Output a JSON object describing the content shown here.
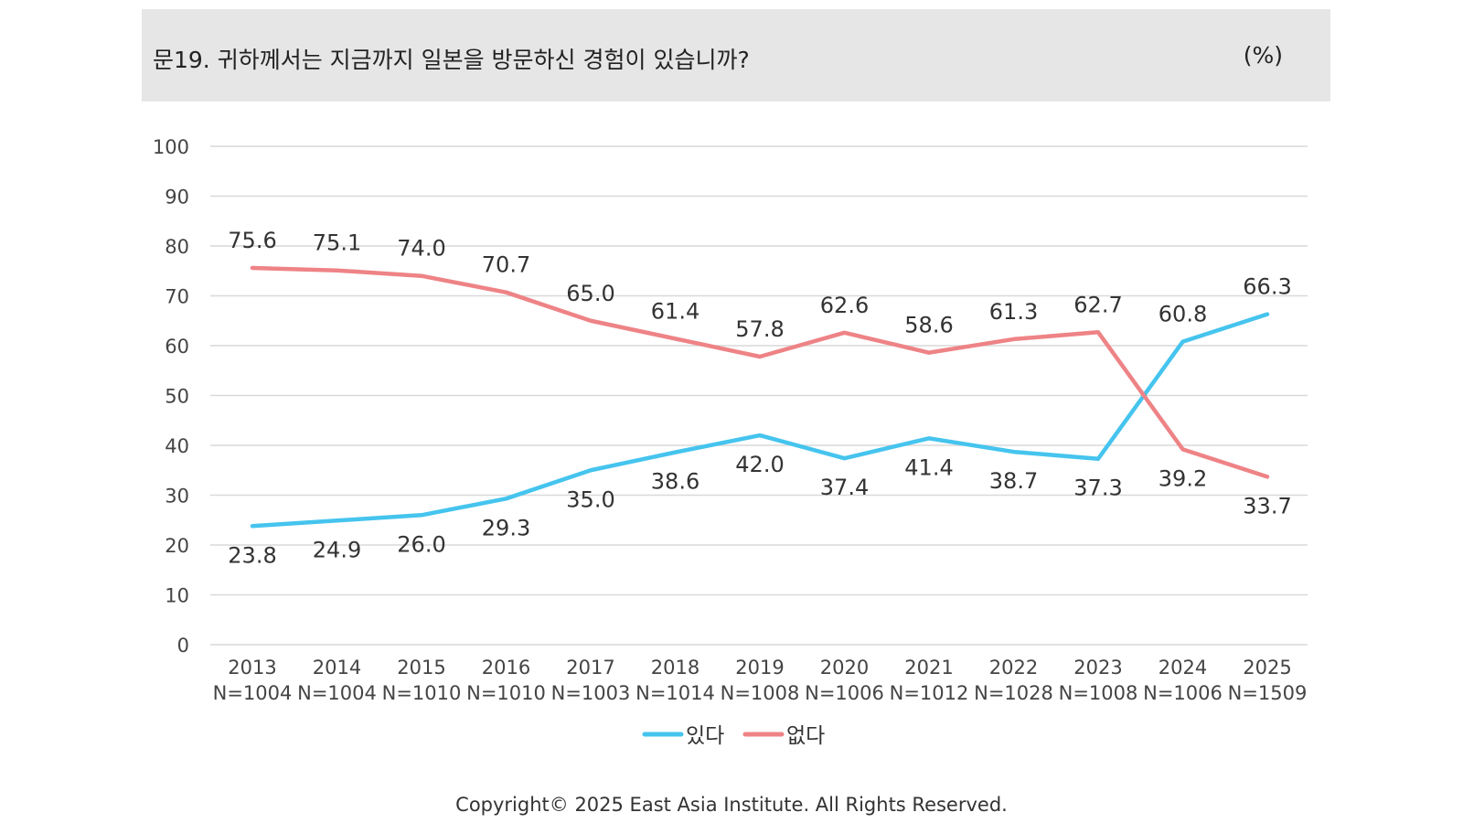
{
  "header": {
    "question": "문19. 귀하께서는 지금까지 일본을 방문하신 경험이 있습니까?",
    "unit": "(%)"
  },
  "chart_data": {
    "type": "line",
    "title": "문19. 귀하께서는 지금까지 일본을 방문하신 경험이 있습니까?",
    "unit": "(%)",
    "categories": [
      "2013",
      "2014",
      "2015",
      "2016",
      "2017",
      "2018",
      "2019",
      "2020",
      "2021",
      "2022",
      "2023",
      "2024",
      "2025"
    ],
    "sample_sizes": [
      "N=1004",
      "N=1004",
      "N=1010",
      "N=1010",
      "N=1003",
      "N=1014",
      "N=1008",
      "N=1006",
      "N=1012",
      "N=1028",
      "N=1008",
      "N=1006",
      "N=1509"
    ],
    "ylim": [
      0,
      100
    ],
    "yticks": [
      0,
      10,
      20,
      30,
      40,
      50,
      60,
      70,
      80,
      90,
      100
    ],
    "grid": true,
    "legend_position": "bottom",
    "series": [
      {
        "name": "있다",
        "color": "#45c4ee",
        "values": [
          23.8,
          24.9,
          26.0,
          29.3,
          35.0,
          38.6,
          42.0,
          37.4,
          41.4,
          38.7,
          37.3,
          60.8,
          66.3
        ],
        "labels": [
          "23.8",
          "24.9",
          "26.0",
          "29.3",
          "35.0",
          "38.6",
          "42.0",
          "37.4",
          "41.4",
          "38.7",
          "37.3",
          "60.8",
          "66.3"
        ]
      },
      {
        "name": "없다",
        "color": "#ee8386",
        "values": [
          75.6,
          75.1,
          74.0,
          70.7,
          65.0,
          61.4,
          57.8,
          62.6,
          58.6,
          61.3,
          62.7,
          39.2,
          33.7
        ],
        "labels": [
          "75.6",
          "75.1",
          "74.0",
          "70.7",
          "65.0",
          "61.4",
          "57.8",
          "62.6",
          "58.6",
          "61.3",
          "62.7",
          "39.2",
          "33.7"
        ]
      }
    ]
  },
  "footer": {
    "copyright": "Copyright© 2025 East Asia Institute. All Rights Reserved."
  }
}
